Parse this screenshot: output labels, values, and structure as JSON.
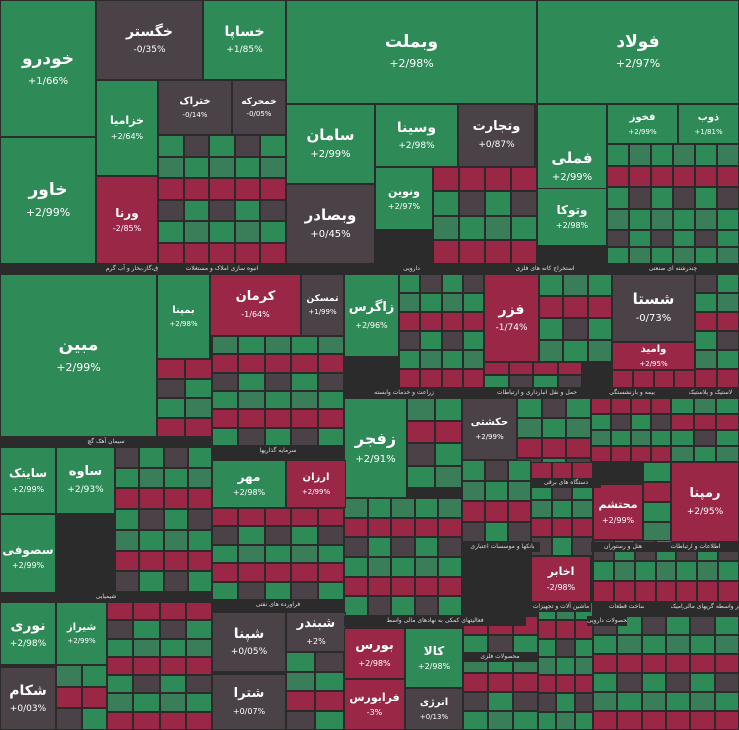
{
  "colors": {
    "up": "#2e8b57",
    "down": "#9b2747",
    "flat": "#4a4247",
    "mid_up": "#3a7d59",
    "background": "#2b2b2b"
  },
  "chart_data": {
    "type": "treemap",
    "title": "",
    "sectors": [
      "عرضه برق،گاز،بخار و آب گرم",
      "انبوه سازی املاک و مستغلات",
      "دارویی",
      "استخراج کانه های فلزی",
      "چندرشته ای صنعتی",
      "سیمان آهک گچ",
      "سرمایه گذاریها",
      "زراعت و خدمات وابسته",
      "حمل و نقل انبارداری و ارتباطات",
      "بیمه و بازنشستگی",
      "لاستیک و پلاستیک",
      "شیمیایی",
      "فراورده های نفتی",
      "فعالیتهای کمکی به نهادهای مالی واسط",
      "محصولات فلزی",
      "ماشین آلات و تجهیزات",
      "خودرو و ساخت قطعات",
      "دستگاه های برقی",
      "اطلاعات و ارتباطات",
      "بانکها و موسسات اعتباری",
      "مواد و محصولات دارویی",
      "هتل و رستوران",
      "کاشی و سرامیک",
      "سایر واسطه گریهای مالی"
    ],
    "tiles": [
      {
        "name": "خودرو",
        "value": "+1/66%",
        "dir": "up"
      },
      {
        "name": "خگستر",
        "value": "-0/35%",
        "dir": "flat"
      },
      {
        "name": "خساپا",
        "value": "+1/85%",
        "dir": "up"
      },
      {
        "name": "وبملت",
        "value": "+2/98%",
        "dir": "up"
      },
      {
        "name": "فولاد",
        "value": "+2/97%",
        "dir": "up"
      },
      {
        "name": "خزامیا",
        "value": "+2/64%",
        "dir": "up"
      },
      {
        "name": "ختراک",
        "value": "-0/14%",
        "dir": "flat"
      },
      {
        "name": "خمحرکه",
        "value": "-0/05%",
        "dir": "flat"
      },
      {
        "name": "خاور",
        "value": "+2/99%",
        "dir": "up"
      },
      {
        "name": "ورنا",
        "value": "-2/85%",
        "dir": "down"
      },
      {
        "name": "سامان",
        "value": "+2/99%",
        "dir": "up"
      },
      {
        "name": "وسینا",
        "value": "+2/98%",
        "dir": "up"
      },
      {
        "name": "وتجارت",
        "value": "+0/87%",
        "dir": "flat"
      },
      {
        "name": "فملی",
        "value": "+2/99%",
        "dir": "up"
      },
      {
        "name": "فخوز",
        "value": "+2/99%",
        "dir": "up"
      },
      {
        "name": "ذوب",
        "value": "+1/81%",
        "dir": "up"
      },
      {
        "name": "وبصادر",
        "value": "+0/45%",
        "dir": "flat"
      },
      {
        "name": "ونوین",
        "value": "+2/97%",
        "dir": "up"
      },
      {
        "name": "وتوکا",
        "value": "+2/98%",
        "dir": "up"
      },
      {
        "name": "مبین",
        "value": "+2/99%",
        "dir": "up"
      },
      {
        "name": "بمپنا",
        "value": "+2/98%",
        "dir": "up"
      },
      {
        "name": "کرمان",
        "value": "-1/64%",
        "dir": "down"
      },
      {
        "name": "تمسکن",
        "value": "+1/99%",
        "dir": "flat"
      },
      {
        "name": "زاگرس",
        "value": "+2/96%",
        "dir": "up"
      },
      {
        "name": "فزر",
        "value": "-1/74%",
        "dir": "down"
      },
      {
        "name": "شستا",
        "value": "-0/73%",
        "dir": "flat"
      },
      {
        "name": "وامید",
        "value": "+2/95%",
        "dir": "down"
      },
      {
        "name": "زفجر",
        "value": "+2/91%",
        "dir": "up"
      },
      {
        "name": "حکشتی",
        "value": "+2/99%",
        "dir": "flat"
      },
      {
        "name": "ساوه",
        "value": "+2/93%",
        "dir": "up"
      },
      {
        "name": "ساینک",
        "value": "+2/99%",
        "dir": "up"
      },
      {
        "name": "سصوفی",
        "value": "+2/99%",
        "dir": "up"
      },
      {
        "name": "مهر",
        "value": "+2/98%",
        "dir": "up"
      },
      {
        "name": "ارزان",
        "value": "+2/99%",
        "dir": "down"
      },
      {
        "name": "رمپنا",
        "value": "+2/95%",
        "dir": "down"
      },
      {
        "name": "محتشم",
        "value": "+2/99%",
        "dir": "down"
      },
      {
        "name": "اخابر",
        "value": "-2/98%",
        "dir": "down"
      },
      {
        "name": "نوری",
        "value": "+2/98%",
        "dir": "up"
      },
      {
        "name": "شیراز",
        "value": "+2/99%",
        "dir": "up"
      },
      {
        "name": "شکام",
        "value": "+0/03%",
        "dir": "flat"
      },
      {
        "name": "شپنا",
        "value": "+0/05%",
        "dir": "flat"
      },
      {
        "name": "شبندر",
        "value": "+2%",
        "dir": "flat"
      },
      {
        "name": "شترا",
        "value": "+0/07%",
        "dir": "flat"
      },
      {
        "name": "بورس",
        "value": "+2/98%",
        "dir": "down"
      },
      {
        "name": "فرابورس",
        "value": "-3%",
        "dir": "down"
      },
      {
        "name": "کالا",
        "value": "+2/98%",
        "dir": "up"
      },
      {
        "name": "انرژی",
        "value": "+0/13%",
        "dir": "flat"
      }
    ]
  }
}
